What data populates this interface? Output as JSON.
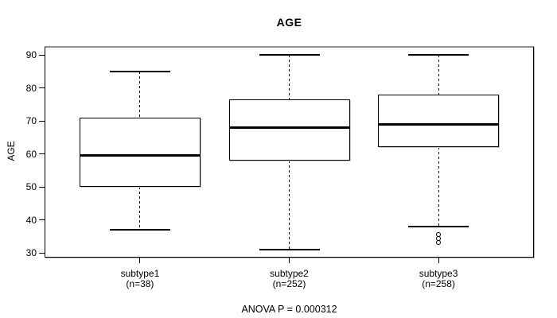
{
  "title": "AGE",
  "y_axis_label": "AGE",
  "footer_annotation": "ANOVA P = 0.000312",
  "chart_data": {
    "type": "boxplot",
    "title": "AGE",
    "ylabel": "AGE",
    "xlabel": "",
    "ylim": [
      30,
      90
    ],
    "yticks": [
      90,
      80,
      70,
      60,
      50,
      40,
      30
    ],
    "grid": "off",
    "annotation": "ANOVA P = 0.000312",
    "groups": [
      {
        "label": "subtype1",
        "n_label": "(n=38)",
        "n": 38,
        "whisker_low": 37,
        "q1": 50,
        "median": 59.5,
        "q3": 71,
        "whisker_high": 85,
        "outliers": []
      },
      {
        "label": "subtype2",
        "n_label": "(n=252)",
        "n": 252,
        "whisker_low": 31,
        "q1": 58,
        "median": 68,
        "q3": 76.5,
        "whisker_high": 90,
        "outliers": []
      },
      {
        "label": "subtype3",
        "n_label": "(n=258)",
        "n": 258,
        "whisker_low": 38,
        "q1": 62,
        "median": 69,
        "q3": 78,
        "whisker_high": 90,
        "outliers": [
          35.5,
          34.3,
          33.2
        ]
      }
    ],
    "colors": {
      "line": "#000000",
      "box_fill": "#ffffff",
      "frame": "#909090",
      "background": "#ffffff"
    }
  }
}
